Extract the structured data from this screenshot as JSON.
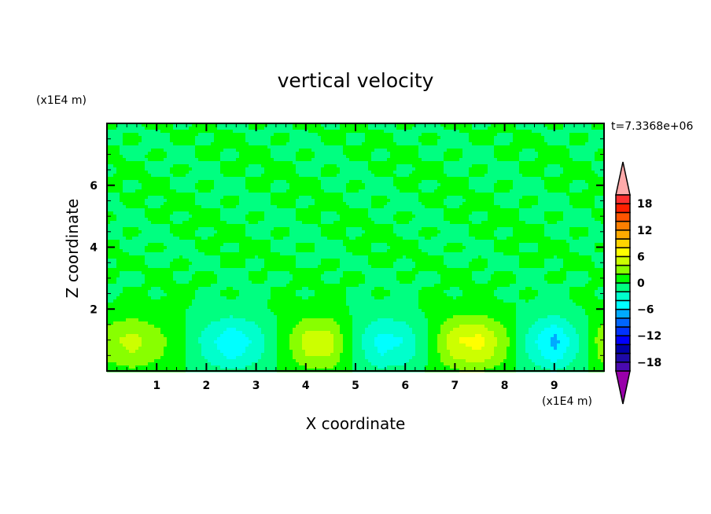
{
  "chart_data": {
    "type": "heatmap",
    "title": "vertical velocity",
    "xlabel": "X coordinate",
    "ylabel": "Z coordinate",
    "x_unit_label": "(x1E4 m)",
    "y_unit_label": "(x1E4 m)",
    "time_label": "t=7.3368e+06",
    "xlim": [
      0,
      10
    ],
    "ylim": [
      0,
      8
    ],
    "x_ticks": [
      "1",
      "2",
      "3",
      "4",
      "5",
      "6",
      "7",
      "8",
      "9"
    ],
    "y_ticks": [
      "2",
      "4",
      "6"
    ],
    "x_tick_values": [
      1,
      2,
      3,
      4,
      5,
      6,
      7,
      8,
      9
    ],
    "y_tick_values": [
      2,
      4,
      6
    ],
    "colorbar": {
      "levels": [
        -18,
        -16,
        -14,
        -12,
        -10,
        -8,
        -6,
        -4,
        -2,
        0,
        2,
        4,
        6,
        8,
        10,
        12,
        14,
        16,
        18
      ],
      "tick_labels": [
        "18",
        "12",
        "6",
        "0",
        "−6",
        "−12",
        "−18"
      ],
      "tick_values": [
        18,
        12,
        6,
        0,
        -6,
        -12,
        -18
      ],
      "colors": [
        "#4a0ab0",
        "#1e0aa8",
        "#0000aa",
        "#0000ff",
        "#0033ff",
        "#0066ff",
        "#00aaff",
        "#00ffff",
        "#00ffcc",
        "#00ff80",
        "#00ff00",
        "#88ff00",
        "#ccff00",
        "#ffff00",
        "#ffd400",
        "#ffaa00",
        "#ff7f00",
        "#ff5500",
        "#ff2000",
        "#ff3030"
      ],
      "under_color": "#9900aa",
      "over_color": "#ffaaaa"
    },
    "grid_x": [
      0,
      0.5,
      1,
      1.5,
      2,
      2.5,
      3,
      3.5,
      4,
      4.5,
      5,
      5.5,
      6,
      6.5,
      7,
      7.5,
      8,
      8.5,
      9,
      9.5,
      10
    ],
    "grid_z": [
      0,
      0.5,
      1,
      1.5,
      2,
      2.5,
      3,
      3.5,
      4,
      4.5,
      5,
      5.5,
      6,
      6.5,
      7,
      7.5,
      8
    ],
    "values": [
      [
        1,
        1.5,
        1,
        0.3,
        -1,
        -1.8,
        -1,
        0.3,
        1.5,
        1.5,
        -0.3,
        -1.5,
        -1.2,
        0.3,
        1.8,
        2,
        1,
        -1,
        -2,
        -0.6,
        1.2
      ],
      [
        2.4,
        4,
        2.4,
        0.4,
        -2.4,
        -4.8,
        -2.8,
        0.4,
        4,
        4,
        -0.8,
        -4,
        -3.2,
        0.4,
        4.8,
        5.6,
        2.4,
        -2.4,
        -5.6,
        -1.6,
        3.2
      ],
      [
        3,
        5,
        3,
        0.5,
        -3,
        -6,
        -3.5,
        0.5,
        5,
        5,
        -1,
        -5,
        -4,
        0.5,
        6,
        7,
        3,
        -3,
        -7,
        -2,
        4
      ],
      [
        1.8,
        3,
        1.8,
        0.3,
        -1.8,
        -3.6,
        -2.1,
        0.3,
        3,
        3,
        -0.6,
        -3,
        -2.4,
        0.3,
        3.6,
        4.2,
        1.8,
        -1.8,
        -4.2,
        -1.2,
        2.4
      ],
      [
        0.3,
        0.5,
        0.4,
        0.1,
        -0.3,
        -0.5,
        -0.2,
        0.3,
        0.6,
        0.5,
        -0.2,
        -0.5,
        -0.3,
        0.2,
        0.6,
        0.6,
        0.3,
        -0.3,
        -0.5,
        -0.1,
        0.4
      ],
      [
        -0.5,
        0.4,
        -0.3,
        0.5,
        -0.4,
        0.3,
        -0.5,
        0.4,
        -0.3,
        0.5,
        -0.4,
        0.3,
        -0.5,
        0.4,
        -0.3,
        0.5,
        -0.4,
        0.3,
        -0.5,
        0.4,
        -0.3
      ],
      [
        0.4,
        -0.5,
        0.5,
        -0.3,
        0.4,
        -0.5,
        0.3,
        -0.4,
        0.5,
        -0.3,
        0.4,
        -0.5,
        0.3,
        -0.4,
        0.5,
        -0.3,
        0.4,
        -0.5,
        0.3,
        -0.4,
        0.5
      ],
      [
        -0.3,
        0.5,
        -0.4,
        0.3,
        -0.5,
        0.4,
        -0.3,
        0.5,
        -0.4,
        0.3,
        -0.5,
        0.4,
        -0.3,
        0.5,
        -0.4,
        0.3,
        -0.5,
        0.4,
        -0.3,
        0.5,
        -0.4
      ],
      [
        0.5,
        -0.4,
        0.3,
        -0.5,
        0.4,
        -0.3,
        0.5,
        -0.4,
        0.3,
        -0.5,
        0.4,
        -0.3,
        0.5,
        -0.4,
        0.3,
        -0.5,
        0.4,
        -0.3,
        0.5,
        -0.4,
        0.3
      ],
      [
        -0.4,
        0.3,
        -0.5,
        0.4,
        -0.3,
        0.5,
        -0.4,
        0.3,
        -0.5,
        0.4,
        -0.3,
        0.5,
        -0.4,
        0.3,
        -0.5,
        0.4,
        -0.3,
        0.5,
        -0.4,
        0.3,
        -0.5
      ],
      [
        0.3,
        -0.5,
        0.4,
        -0.3,
        0.5,
        -0.4,
        0.3,
        -0.5,
        0.4,
        -0.3,
        0.5,
        -0.4,
        0.3,
        -0.5,
        0.4,
        -0.3,
        0.5,
        -0.4,
        0.3,
        -0.5,
        0.4
      ],
      [
        -0.5,
        0.4,
        -0.3,
        0.5,
        -0.4,
        0.3,
        -0.5,
        0.4,
        -0.3,
        0.5,
        -0.4,
        0.3,
        -0.5,
        0.4,
        -0.3,
        0.5,
        -0.4,
        0.3,
        -0.5,
        0.4,
        -0.3
      ],
      [
        0.4,
        -0.3,
        0.5,
        -0.4,
        0.3,
        -0.5,
        0.4,
        -0.3,
        0.5,
        -0.4,
        0.3,
        -0.5,
        0.4,
        -0.3,
        0.5,
        -0.4,
        0.3,
        -0.5,
        0.4,
        -0.3,
        0.5
      ],
      [
        -0.3,
        0.5,
        -0.4,
        0.3,
        -0.5,
        0.4,
        -0.3,
        0.5,
        -0.4,
        0.3,
        -0.5,
        0.4,
        -0.3,
        0.5,
        -0.4,
        0.3,
        -0.5,
        0.4,
        -0.3,
        0.5,
        -0.4
      ],
      [
        0.5,
        -0.4,
        0.3,
        -0.5,
        0.4,
        -0.3,
        0.5,
        -0.4,
        0.3,
        -0.5,
        0.4,
        -0.3,
        0.5,
        -0.4,
        0.3,
        -0.5,
        0.4,
        -0.3,
        0.5,
        -0.4,
        0.3
      ],
      [
        -0.4,
        0.3,
        -0.5,
        0.4,
        -0.3,
        0.5,
        -0.4,
        0.3,
        -0.5,
        0.4,
        -0.3,
        0.5,
        -0.4,
        0.3,
        -0.5,
        0.4,
        -0.3,
        0.5,
        -0.4,
        0.3,
        -0.5
      ],
      [
        0.3,
        -0.4,
        0.5,
        -0.3,
        0.4,
        -0.5,
        0.3,
        -0.4,
        0.5,
        -0.3,
        0.4,
        -0.5,
        0.3,
        -0.4,
        0.5,
        -0.3,
        0.4,
        -0.5,
        0.3,
        -0.4,
        0.5
      ]
    ]
  }
}
